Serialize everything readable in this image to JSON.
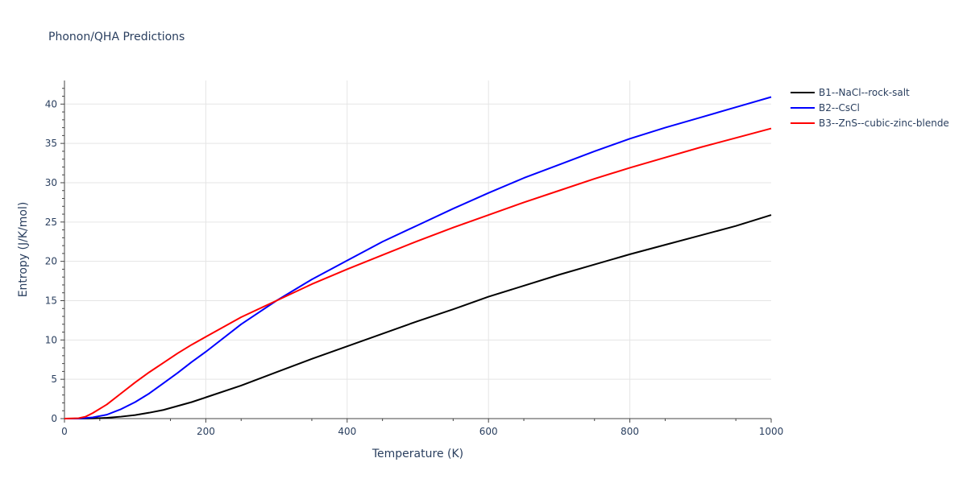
{
  "chart_data": {
    "type": "line",
    "title": "Phonon/QHA Predictions",
    "xlabel": "Temperature (K)",
    "ylabel": "Entropy (J/K/mol)",
    "xlim": [
      0,
      1000
    ],
    "ylim": [
      0,
      43
    ],
    "xticks": [
      0,
      200,
      400,
      600,
      800,
      1000
    ],
    "yticks": [
      0,
      5,
      10,
      15,
      20,
      25,
      30,
      35,
      40
    ],
    "grid": true,
    "legend_position": "top-right, outside plot",
    "series": [
      {
        "name": "B1--NaCl--rock-salt",
        "color": "#000000",
        "x": [
          0,
          20,
          40,
          60,
          80,
          100,
          120,
          140,
          160,
          180,
          200,
          250,
          300,
          350,
          400,
          450,
          500,
          550,
          600,
          650,
          700,
          750,
          800,
          850,
          900,
          950,
          1000
        ],
        "y": [
          0,
          0,
          0.02,
          0.1,
          0.25,
          0.45,
          0.75,
          1.1,
          1.6,
          2.1,
          2.7,
          4.2,
          5.9,
          7.6,
          9.2,
          10.8,
          12.4,
          13.9,
          15.5,
          16.9,
          18.3,
          19.6,
          20.9,
          22.1,
          23.3,
          24.5,
          25.9
        ]
      },
      {
        "name": "B2--CsCl",
        "color": "#0000ff",
        "x": [
          0,
          20,
          40,
          60,
          80,
          100,
          120,
          140,
          160,
          180,
          200,
          250,
          300,
          350,
          400,
          450,
          500,
          550,
          600,
          650,
          700,
          750,
          800,
          850,
          900,
          950,
          1000
        ],
        "y": [
          0,
          0,
          0.15,
          0.5,
          1.2,
          2.1,
          3.2,
          4.5,
          5.8,
          7.2,
          8.5,
          12.0,
          15.0,
          17.7,
          20.1,
          22.5,
          24.6,
          26.7,
          28.7,
          30.6,
          32.3,
          34.0,
          35.6,
          37.0,
          38.3,
          39.6,
          40.9
        ]
      },
      {
        "name": "B3--ZnS--cubic-zinc-blende",
        "color": "#ff0000",
        "x": [
          0,
          20,
          30,
          40,
          60,
          80,
          100,
          120,
          140,
          160,
          180,
          200,
          250,
          300,
          350,
          400,
          450,
          500,
          550,
          600,
          650,
          700,
          750,
          800,
          850,
          900,
          950,
          1000
        ],
        "y": [
          0,
          0.05,
          0.25,
          0.7,
          1.8,
          3.2,
          4.6,
          5.9,
          7.1,
          8.3,
          9.4,
          10.4,
          12.9,
          15.0,
          17.1,
          19.0,
          20.8,
          22.6,
          24.3,
          25.9,
          27.5,
          29.0,
          30.5,
          31.9,
          33.2,
          34.5,
          35.7,
          36.9
        ]
      }
    ]
  }
}
